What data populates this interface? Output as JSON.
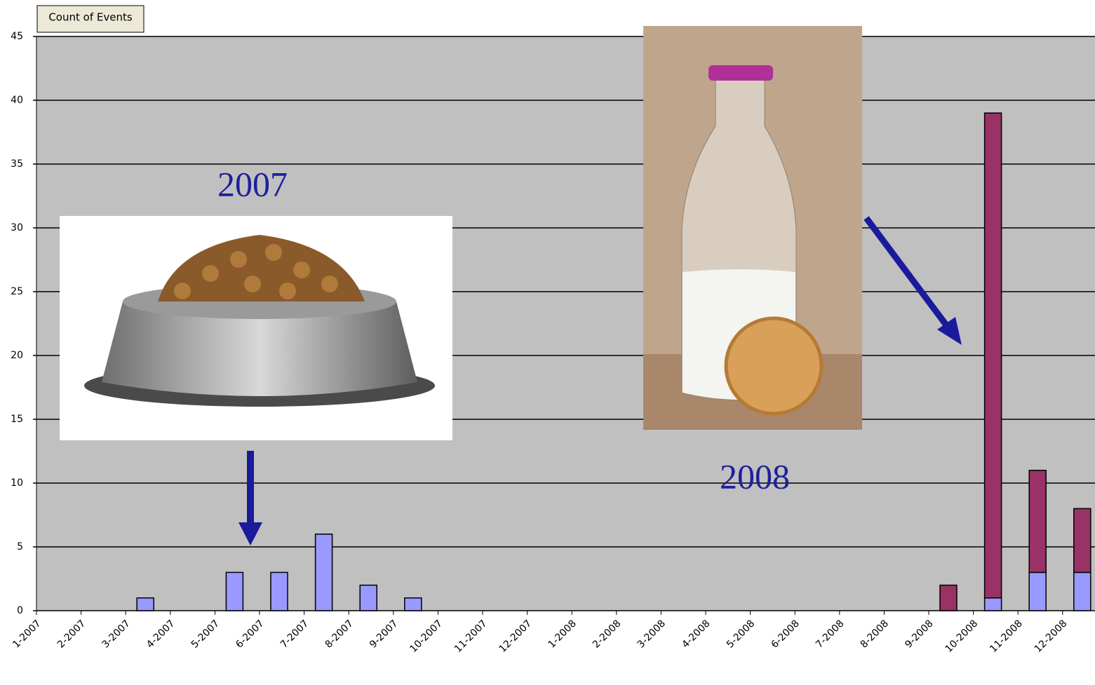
{
  "chart_data": {
    "type": "stacked_bar",
    "field_button": "Count of Events",
    "categories": [
      "1-2007",
      "2-2007",
      "3-2007",
      "4-2007",
      "5-2007",
      "6-2007",
      "7-2007",
      "8-2007",
      "9-2007",
      "10-2007",
      "11-2007",
      "12-2007",
      "1-2008",
      "2-2008",
      "3-2008",
      "4-2008",
      "5-2008",
      "6-2008",
      "7-2008",
      "8-2008",
      "9-2008",
      "10-2008",
      "11-2008",
      "12-2008"
    ],
    "series": [
      {
        "color": "#9999ff",
        "values": [
          null,
          null,
          1,
          null,
          3,
          3,
          6,
          2,
          1,
          null,
          null,
          null,
          null,
          null,
          null,
          null,
          null,
          null,
          null,
          null,
          null,
          1,
          3,
          3
        ]
      },
      {
        "color": "#993366",
        "values": [
          null,
          null,
          null,
          null,
          null,
          null,
          null,
          null,
          null,
          null,
          null,
          null,
          null,
          null,
          null,
          null,
          null,
          null,
          null,
          null,
          2,
          38,
          8,
          5
        ]
      }
    ],
    "ylim": [
      0,
      45
    ],
    "yticks": [
      0,
      5,
      10,
      15,
      20,
      25,
      30,
      35,
      40,
      45
    ],
    "grid": true,
    "annotations": [
      "2007",
      "2008"
    ]
  }
}
